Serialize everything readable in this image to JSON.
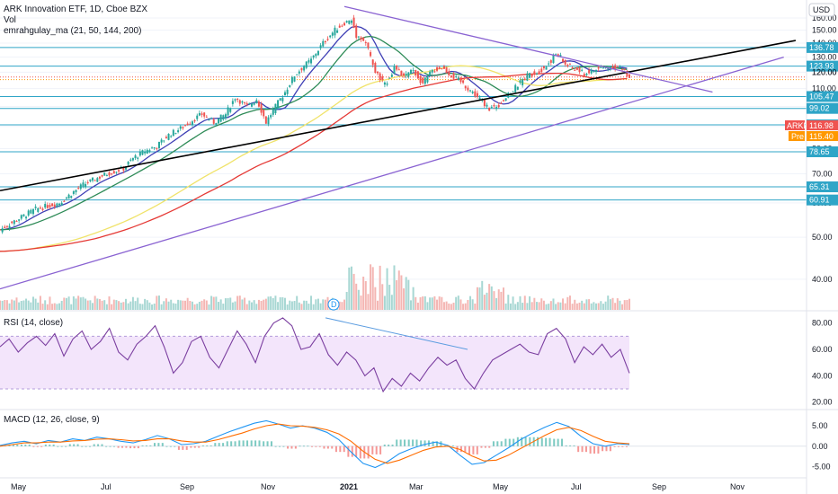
{
  "header": {
    "title": "ARK Innovation ETF, 1D, Cboe BZX",
    "vol": "Vol",
    "ma": "emrahgulay_ma (21, 50, 144, 200)",
    "currency": "USD"
  },
  "colors": {
    "ma21": "#3f3fb5",
    "ma50": "#2e8b57",
    "ma144": "#f0e36a",
    "ma200": "#e53935",
    "trend_black": "#000000",
    "trend_purple": "#8a63d2",
    "hline": "#2fa5c7",
    "up": "#26a69a",
    "down": "#ef5350",
    "rsi": "#7b3fa0",
    "macd": "#2196f3",
    "signal": "#ff6d00"
  },
  "price_labels": {
    "ticker": "ARKK",
    "last": "116.98",
    "pre_tag": "Pre",
    "pre_value": "115.40"
  },
  "chart_data": [
    {
      "type": "candlestick",
      "title": "ARK Innovation ETF, 1D, Cboe BZX",
      "x_ticks": [
        "May",
        "Jul",
        "Sep",
        "Nov",
        "2021",
        "Mar",
        "May",
        "Jul",
        "Sep",
        "Nov"
      ],
      "y_ticks": [
        40.0,
        50.0,
        60.0,
        70.0,
        80.0,
        90.0,
        100.0,
        110.0,
        120.0,
        130.0,
        140.0,
        150.0,
        160.0
      ],
      "y_scale": "log",
      "ylim": [
        34,
        176
      ],
      "close_path": [
        [
          0,
          52
        ],
        [
          15,
          58
        ],
        [
          25,
          60
        ],
        [
          35,
          66
        ],
        [
          45,
          70
        ],
        [
          52,
          72
        ],
        [
          56,
          76
        ],
        [
          61,
          79
        ],
        [
          66,
          81
        ],
        [
          71,
          86
        ],
        [
          76,
          89
        ],
        [
          81,
          93
        ],
        [
          85,
          96
        ],
        [
          90,
          92
        ],
        [
          95,
          96
        ],
        [
          99,
          105
        ],
        [
          104,
          100
        ],
        [
          108,
          104
        ],
        [
          112,
          92
        ],
        [
          116,
          100
        ],
        [
          120,
          108
        ],
        [
          124,
          118
        ],
        [
          128,
          124
        ],
        [
          131,
          128
        ],
        [
          136,
          140
        ],
        [
          141,
          150
        ],
        [
          145,
          156
        ],
        [
          148,
          158
        ],
        [
          150,
          146
        ],
        [
          152,
          144
        ],
        [
          154,
          140
        ],
        [
          158,
          120
        ],
        [
          162,
          112
        ],
        [
          166,
          123
        ],
        [
          170,
          117
        ],
        [
          174,
          121
        ],
        [
          178,
          113
        ],
        [
          182,
          121
        ],
        [
          186,
          123
        ],
        [
          190,
          118
        ],
        [
          194,
          114
        ],
        [
          198,
          109
        ],
        [
          202,
          104
        ],
        [
          206,
          99
        ],
        [
          210,
          101
        ],
        [
          214,
          106
        ],
        [
          218,
          112
        ],
        [
          222,
          118
        ],
        [
          226,
          120
        ],
        [
          230,
          124
        ],
        [
          234,
          132
        ],
        [
          236,
          130
        ],
        [
          238,
          125
        ],
        [
          242,
          122
        ],
        [
          246,
          119
        ],
        [
          250,
          121
        ],
        [
          254,
          123
        ],
        [
          258,
          124
        ],
        [
          262,
          122
        ],
        [
          265,
          117
        ]
      ],
      "x_range": [
        0,
        265
      ],
      "moving_averages": [
        {
          "name": "21",
          "color": "#3f3fb5"
        },
        {
          "name": "50",
          "color": "#2e8b57"
        },
        {
          "name": "144",
          "color": "#f0e36a"
        },
        {
          "name": "200",
          "color": "#e53935"
        }
      ],
      "horizontal_levels": [
        136.78,
        123.93,
        120.0,
        116.98,
        115.4,
        105.47,
        99.02,
        90.73,
        78.65,
        65.31,
        60.91
      ],
      "level_labels": [
        "136.78",
        "123.93",
        "120.00",
        "116.98",
        "115.40",
        "105.47",
        "99.02",
        "90.73",
        "78.65",
        "65.31",
        "60.91"
      ],
      "trendlines": [
        {
          "color": "#000000",
          "from": [
            0,
            64
          ],
          "to": [
            335,
            142
          ]
        },
        {
          "color": "#8a63d2",
          "from": [
            0,
            38
          ],
          "to": [
            330,
            130
          ]
        },
        {
          "color": "#8a63d2",
          "from": [
            145,
            170
          ],
          "to": [
            300,
            108
          ]
        }
      ]
    },
    {
      "type": "line",
      "title": "RSI (14, close)",
      "y_ticks": [
        20.0,
        40.0,
        60.0,
        80.0
      ],
      "ylim": [
        15,
        88
      ],
      "band": [
        30,
        70
      ],
      "values": [
        62,
        68,
        58,
        65,
        70,
        63,
        72,
        55,
        68,
        74,
        60,
        66,
        76,
        58,
        52,
        64,
        70,
        78,
        62,
        42,
        50,
        66,
        70,
        54,
        46,
        60,
        74,
        64,
        50,
        70,
        80,
        84,
        78,
        60,
        62,
        72,
        56,
        48,
        58,
        52,
        40,
        46,
        28,
        38,
        32,
        42,
        36,
        46,
        54,
        48,
        52,
        38,
        30,
        42,
        52,
        56,
        60,
        64,
        58,
        56,
        72,
        76,
        68,
        50,
        62,
        56,
        64,
        54,
        60,
        42
      ]
    },
    {
      "type": "bar+line",
      "title": "MACD (12, 26, close, 9)",
      "y_ticks": [
        5.0,
        0.0,
        -5.0
      ],
      "ylim": [
        -7.5,
        8.5
      ],
      "macd": [
        0.2,
        0.8,
        1.2,
        0.6,
        1.4,
        1.0,
        1.8,
        1.4,
        2.2,
        1.8,
        1.2,
        0.8,
        1.6,
        2.6,
        1.8,
        0.4,
        0.6,
        1.2,
        2.4,
        3.6,
        4.6,
        5.6,
        6.2,
        5.4,
        4.4,
        5.0,
        4.4,
        3.4,
        1.6,
        -1.4,
        -4.2,
        -5.2,
        -3.8,
        -1.8,
        -0.6,
        0.4,
        1.0,
        0.2,
        -2.2,
        -4.4,
        -4.0,
        -2.2,
        -0.4,
        1.6,
        3.2,
        4.6,
        5.8,
        4.8,
        2.4,
        0.6,
        0.0,
        0.6,
        0.4
      ],
      "signal": [
        0.0,
        0.4,
        0.8,
        0.8,
        1.0,
        1.0,
        1.3,
        1.4,
        1.7,
        1.8,
        1.6,
        1.3,
        1.4,
        1.8,
        1.8,
        1.3,
        1.0,
        1.0,
        1.6,
        2.4,
        3.2,
        4.2,
        5.0,
        5.4,
        5.0,
        4.9,
        4.6,
        4.0,
        3.0,
        1.2,
        -1.2,
        -3.2,
        -4.2,
        -3.4,
        -2.2,
        -1.0,
        -0.2,
        0.0,
        -0.8,
        -2.4,
        -3.6,
        -3.4,
        -2.2,
        -0.6,
        1.0,
        2.6,
        4.0,
        4.6,
        3.8,
        2.4,
        1.2,
        0.8,
        0.6
      ]
    }
  ]
}
